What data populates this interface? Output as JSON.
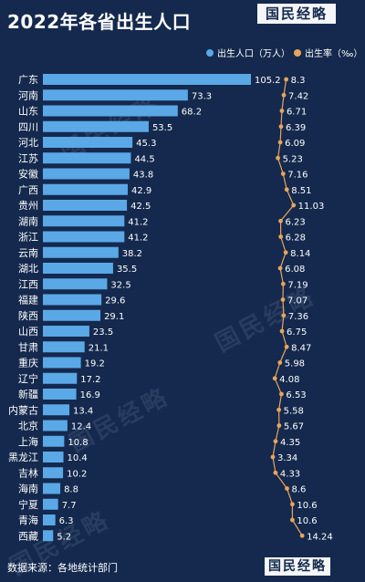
{
  "header": {
    "title": "2022年各省出生人口",
    "logo": "国民经略"
  },
  "footer": {
    "source": "数据来源：各地统计部门",
    "logo": "国民经略"
  },
  "colors": {
    "background": "#14294d",
    "bar": "#5aa8e6",
    "line": "#e8a45c"
  },
  "chart_data": {
    "type": "bar+line",
    "orientation": "horizontal",
    "categories": [
      "广东",
      "河南",
      "山东",
      "四川",
      "河北",
      "江苏",
      "安徽",
      "广西",
      "贵州",
      "湖南",
      "浙江",
      "云南",
      "湖北",
      "江西",
      "福建",
      "陕西",
      "山西",
      "甘肃",
      "重庆",
      "辽宁",
      "新疆",
      "内蒙古",
      "北京",
      "上海",
      "黑龙江",
      "吉林",
      "海南",
      "宁夏",
      "青海",
      "西藏"
    ],
    "series": [
      {
        "name": "出生人口（万人）",
        "type": "bar",
        "values": [
          105.2,
          73.3,
          68.2,
          53.5,
          45.3,
          44.5,
          43.8,
          42.9,
          42.5,
          41.2,
          41.2,
          38.2,
          35.5,
          32.5,
          29.6,
          29.1,
          23.5,
          21.1,
          19.2,
          17.2,
          16.9,
          13.4,
          12.4,
          10.8,
          10.4,
          10.2,
          8.8,
          7.7,
          6.3,
          5.2
        ],
        "labels": [
          "105.2",
          "73.3",
          "68.2",
          "53.5",
          "45.3",
          "44.5",
          "43.8",
          "42.9",
          "42.5",
          "41.2",
          "41.2",
          "38.2",
          "35.5",
          "32.5",
          "29.6",
          "29.1",
          "23.5",
          "21.1",
          "19.2",
          "17.2",
          "16.9",
          "13.4",
          "12.4",
          "10.8",
          "10.4",
          "10.2",
          "8.8",
          "7.7",
          "6.3",
          "5.2"
        ]
      },
      {
        "name": "出生率（‰）",
        "type": "line",
        "values": [
          8.3,
          7.42,
          6.71,
          6.39,
          6.09,
          5.23,
          7.16,
          8.51,
          11.03,
          6.23,
          6.28,
          8.14,
          6.08,
          7.19,
          7.07,
          7.36,
          6.75,
          8.47,
          5.98,
          4.08,
          6.53,
          5.58,
          5.67,
          4.35,
          3.34,
          4.33,
          8.6,
          10.6,
          10.6,
          14.24
        ],
        "labels": [
          "8.3",
          "7.42",
          "6.71",
          "6.39",
          "6.09",
          "5.23",
          "7.16",
          "8.51",
          "11.03",
          "6.23",
          "6.28",
          "8.14",
          "6.08",
          "7.19",
          "7.07",
          "7.36",
          "6.75",
          "8.47",
          "5.98",
          "4.08",
          "6.53",
          "5.58",
          "5.67",
          "4.35",
          "3.34",
          "4.33",
          "8.6",
          "10.6",
          "10.6",
          "14.24"
        ]
      }
    ],
    "legend_position": "top-right"
  }
}
